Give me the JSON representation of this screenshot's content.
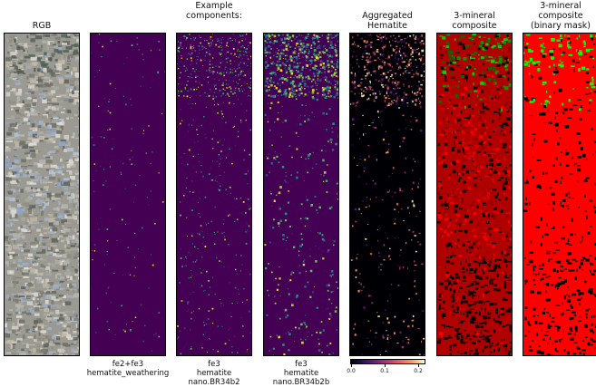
{
  "panels": [
    {
      "id": "rgb",
      "title": "RGB",
      "caption": "",
      "kind": "rgb"
    },
    {
      "id": "fe2fe3",
      "title": "",
      "caption": "fe2+fe3\nhematite_weathering",
      "kind": "sparse"
    },
    {
      "id": "fe3a",
      "title": "Example\ncomponents:",
      "caption": "fe3\nhematite\nnano.BR34b2",
      "kind": "medium"
    },
    {
      "id": "fe3b",
      "title": "",
      "caption": "fe3\nhematite\nnano.BR34b2b",
      "kind": "dense"
    },
    {
      "id": "agg",
      "title": "Aggregated\nHematite",
      "caption": "",
      "kind": "magma"
    },
    {
      "id": "comp",
      "title": "3-mineral\ncomposite",
      "caption": "",
      "kind": "composite"
    },
    {
      "id": "mask",
      "title": "3-mineral\ncomposite\n(binary mask)",
      "caption": "",
      "kind": "mask"
    }
  ],
  "colorbar": {
    "colormap": "magma",
    "ticks": [
      "0.0",
      "0.1",
      "0.2"
    ],
    "range": [
      0.0,
      0.22
    ]
  },
  "colors": {
    "viridis_low": "#440154",
    "viridis_high": "#fde725",
    "composite_red": "#ff0000",
    "composite_green": "#00ff00"
  }
}
